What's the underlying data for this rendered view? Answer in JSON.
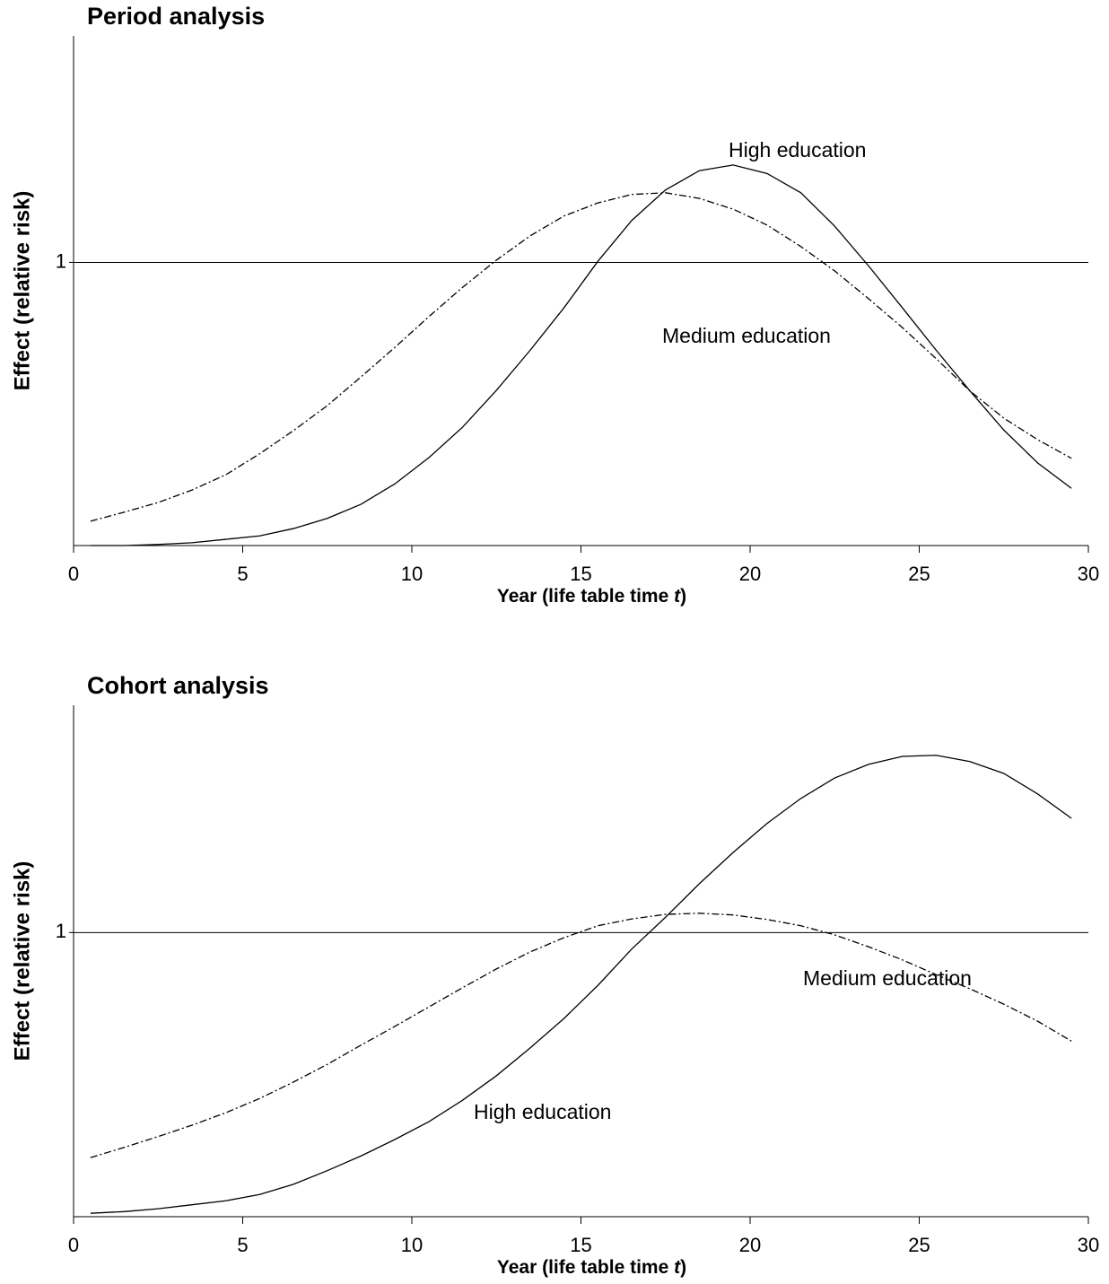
{
  "chart_data": [
    {
      "type": "line",
      "title": "Period analysis",
      "ylabel": "Effect (relative risk)",
      "xlabel": [
        "Year (life table time ",
        "t",
        ")"
      ],
      "xlim": [
        0,
        30
      ],
      "xticks": [
        0,
        5,
        10,
        15,
        20,
        25,
        30
      ],
      "ylim": [
        0.5,
        1.4
      ],
      "yticks": [
        1
      ],
      "grid": true,
      "x": [
        0.5,
        1.5,
        2.5,
        3.5,
        4.5,
        5.5,
        6.5,
        7.5,
        8.5,
        9.5,
        10.5,
        11.5,
        12.5,
        13.5,
        14.5,
        15.5,
        16.5,
        17.5,
        18.5,
        19.5,
        20.5,
        21.5,
        22.5,
        23.5,
        24.5,
        25.5,
        26.5,
        27.5,
        28.5,
        29.5
      ],
      "series": [
        {
          "name": "High education",
          "color": "#000000",
          "dash": "solid",
          "values": [
            0.5,
            0.5,
            0.502,
            0.505,
            0.511,
            0.517,
            0.53,
            0.548,
            0.573,
            0.609,
            0.655,
            0.709,
            0.774,
            0.845,
            0.92,
            1.002,
            1.074,
            1.128,
            1.162,
            1.172,
            1.157,
            1.123,
            1.064,
            0.994,
            0.92,
            0.845,
            0.773,
            0.704,
            0.646,
            0.601
          ]
        },
        {
          "name": "Medium education",
          "color": "#000000",
          "dash": "dashdot",
          "values": [
            0.543,
            0.559,
            0.576,
            0.598,
            0.625,
            0.662,
            0.703,
            0.747,
            0.798,
            0.85,
            0.904,
            0.956,
            1.004,
            1.047,
            1.082,
            1.105,
            1.12,
            1.123,
            1.113,
            1.094,
            1.066,
            1.028,
            0.985,
            0.936,
            0.885,
            0.83,
            0.773,
            0.725,
            0.687,
            0.654
          ]
        }
      ]
    },
    {
      "type": "line",
      "title": "Cohort analysis",
      "ylabel": "Effect (relative risk)",
      "xlabel": [
        "Year (life table time ",
        "t",
        ")"
      ],
      "xlim": [
        0,
        30
      ],
      "xticks": [
        0,
        5,
        10,
        15,
        20,
        25,
        30
      ],
      "ylim": [
        0.5,
        1.4
      ],
      "yticks": [
        1
      ],
      "grid": true,
      "x": [
        0.5,
        1.5,
        2.5,
        3.5,
        4.5,
        5.5,
        6.5,
        7.5,
        8.5,
        9.5,
        10.5,
        11.5,
        12.5,
        13.5,
        14.5,
        15.5,
        16.5,
        17.5,
        18.5,
        19.5,
        20.5,
        21.5,
        22.5,
        23.5,
        24.5,
        25.5,
        26.5,
        27.5,
        28.5,
        29.5
      ],
      "series": [
        {
          "name": "High education",
          "color": "#000000",
          "dash": "solid",
          "values": [
            0.506,
            0.509,
            0.514,
            0.521,
            0.528,
            0.539,
            0.557,
            0.581,
            0.607,
            0.636,
            0.667,
            0.705,
            0.748,
            0.797,
            0.849,
            0.907,
            0.971,
            1.027,
            1.086,
            1.141,
            1.192,
            1.236,
            1.272,
            1.296,
            1.31,
            1.312,
            1.301,
            1.28,
            1.244,
            1.201
          ]
        },
        {
          "name": "Medium education",
          "color": "#000000",
          "dash": "dashdot",
          "values": [
            0.604,
            0.622,
            0.641,
            0.661,
            0.683,
            0.708,
            0.737,
            0.768,
            0.802,
            0.835,
            0.869,
            0.903,
            0.936,
            0.966,
            0.991,
            1.012,
            1.024,
            1.032,
            1.034,
            1.031,
            1.023,
            1.012,
            0.996,
            0.975,
            0.952,
            0.926,
            0.901,
            0.874,
            0.844,
            0.809
          ]
        }
      ]
    }
  ]
}
